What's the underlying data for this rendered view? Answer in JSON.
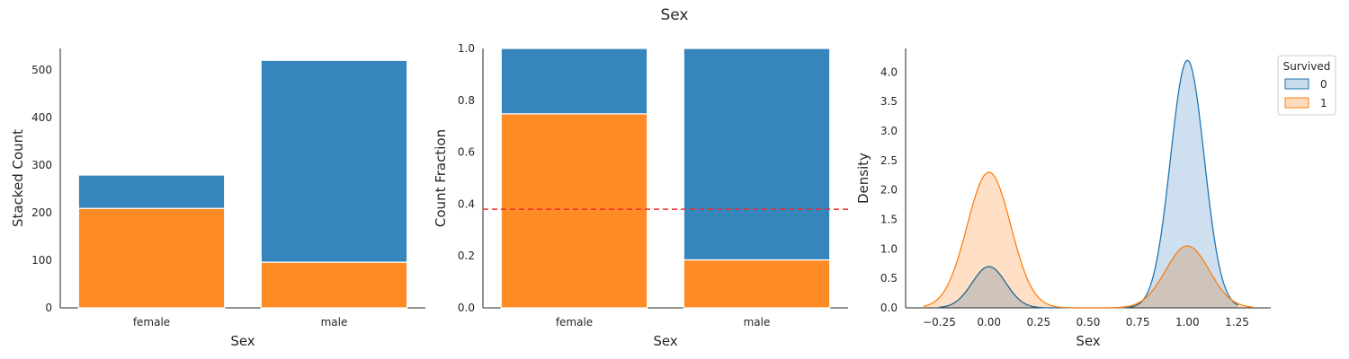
{
  "figure": {
    "title": "Sex"
  },
  "colors": {
    "survived_0": "#3685bc",
    "survived_1": "#ff8b26",
    "kde_0_line": "#1f77b4",
    "kde_0_fill": "#c6dbed",
    "kde_1_line": "#ff7f0e",
    "kde_1_fill": "#ffdbbd",
    "mean_line": "#ee2b2b",
    "axis": "#262626"
  },
  "legend": {
    "title": "Survived",
    "entries": [
      "0",
      "1"
    ],
    "placement": "outside-right-top"
  },
  "chart_data": [
    {
      "type": "bar",
      "stacked": true,
      "xlabel": "Sex",
      "ylabel": "Stacked Count",
      "categories": [
        "female",
        "male"
      ],
      "series": [
        {
          "name": "1",
          "values": [
            209,
            96
          ]
        },
        {
          "name": "0",
          "values": [
            70,
            424
          ]
        }
      ],
      "ylim": [
        0,
        545
      ],
      "yticks": [
        "0",
        "100",
        "200",
        "300",
        "400",
        "500"
      ],
      "grid": false
    },
    {
      "type": "bar",
      "stacked": true,
      "normalized": true,
      "xlabel": "Sex",
      "ylabel": "Count Fraction",
      "categories": [
        "female",
        "male"
      ],
      "series": [
        {
          "name": "1",
          "values": [
            0.748,
            0.185
          ]
        },
        {
          "name": "0",
          "values": [
            0.252,
            0.815
          ]
        }
      ],
      "reference_line": {
        "y": 0.38,
        "style": "dashed"
      },
      "ylim": [
        0,
        1.0
      ],
      "yticks": [
        "0.0",
        "0.2",
        "0.4",
        "0.6",
        "0.8",
        "1.0"
      ],
      "grid": false
    },
    {
      "type": "area",
      "subtype": "kde",
      "xlabel": "Sex",
      "ylabel": "Density",
      "series": [
        {
          "name": "0",
          "components": [
            {
              "mean": 0.0,
              "sd": 0.085,
              "peak": 0.7
            },
            {
              "mean": 1.0,
              "sd": 0.085,
              "peak": 4.2
            }
          ]
        },
        {
          "name": "1",
          "components": [
            {
              "mean": 0.0,
              "sd": 0.11,
              "peak": 2.3
            },
            {
              "mean": 1.0,
              "sd": 0.11,
              "peak": 1.05
            }
          ]
        }
      ],
      "xlim": [
        -0.42,
        1.42
      ],
      "ylim": [
        0,
        4.4
      ],
      "xticks": [
        "−0.25",
        "0.00",
        "0.25",
        "0.50",
        "0.75",
        "1.00",
        "1.25"
      ],
      "yticks": [
        "0.0",
        "0.5",
        "1.0",
        "1.5",
        "2.0",
        "2.5",
        "3.0",
        "3.5",
        "4.0"
      ],
      "grid": false
    }
  ]
}
